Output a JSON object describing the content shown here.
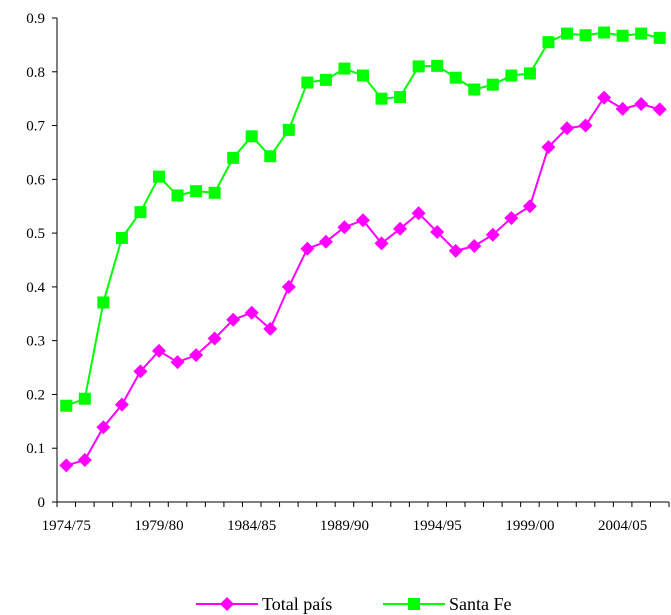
{
  "chart_data": {
    "type": "line",
    "title": "",
    "xlabel": "",
    "ylabel": "",
    "ylim": [
      0,
      0.9
    ],
    "y_ticks": [
      "0",
      "0.1",
      "0.2",
      "0.3",
      "0.4",
      "0.5",
      "0.6",
      "0.7",
      "0.8",
      "0.9"
    ],
    "x_tick_labels": [
      "1974/75",
      "1979/80",
      "1984/85",
      "1989/90",
      "1994/95",
      "1999/00",
      "2004/05"
    ],
    "categories": [
      "1974/75",
      "1975/76",
      "1976/77",
      "1977/78",
      "1978/79",
      "1979/80",
      "1980/81",
      "1981/82",
      "1982/83",
      "1983/84",
      "1984/85",
      "1985/86",
      "1986/87",
      "1987/88",
      "1988/89",
      "1989/90",
      "1990/91",
      "1991/92",
      "1992/93",
      "1993/94",
      "1994/95",
      "1995/96",
      "1996/97",
      "1997/98",
      "1998/99",
      "1999/00",
      "2000/01",
      "2001/02",
      "2002/03",
      "2003/04",
      "2004/05",
      "2005/06",
      "2006/07"
    ],
    "grid": false,
    "legend_position": "bottom",
    "series": [
      {
        "name": "Total país",
        "color": "#FF00FF",
        "marker": "diamond",
        "values": [
          0.068,
          0.078,
          0.139,
          0.181,
          0.243,
          0.281,
          0.26,
          0.273,
          0.304,
          0.339,
          0.352,
          0.322,
          0.4,
          0.471,
          0.484,
          0.511,
          0.524,
          0.481,
          0.508,
          0.537,
          0.502,
          0.467,
          0.476,
          0.497,
          0.528,
          0.55,
          0.66,
          0.695,
          0.7,
          0.752,
          0.731,
          0.74,
          0.73
        ]
      },
      {
        "name": "Santa Fe",
        "color": "#00FF00",
        "marker": "square",
        "values": [
          0.179,
          0.192,
          0.371,
          0.491,
          0.539,
          0.605,
          0.57,
          0.578,
          0.575,
          0.64,
          0.68,
          0.643,
          0.692,
          0.78,
          0.785,
          0.806,
          0.793,
          0.75,
          0.753,
          0.81,
          0.811,
          0.789,
          0.767,
          0.776,
          0.793,
          0.797,
          0.855,
          0.871,
          0.868,
          0.873,
          0.867,
          0.871,
          0.863
        ]
      }
    ]
  }
}
